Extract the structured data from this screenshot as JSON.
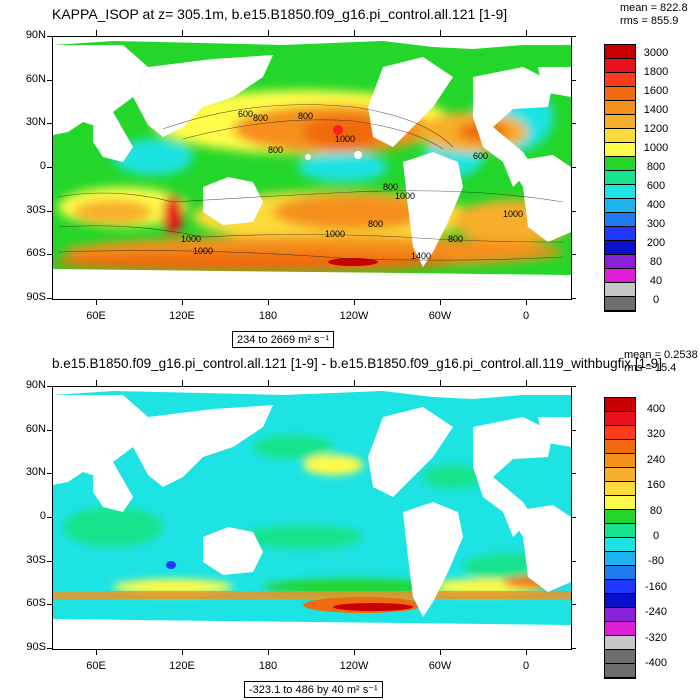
{
  "panel1": {
    "title": "KAPPA_ISOP at z= 305.1m, b.e15.B1850.f09_g16.pi_control.all.121 [1-9]",
    "mean": "mean = 822.8",
    "rms": "rms = 855.9",
    "range_label": "234 to 2669 m² s⁻¹",
    "colorbar_labels": [
      "3000",
      "1800",
      "1600",
      "1400",
      "1200",
      "1000",
      "800",
      "600",
      "400",
      "300",
      "200",
      "80",
      "40",
      "0"
    ],
    "contour_labels": [
      "600",
      "800",
      "1000",
      "800",
      "800",
      "600",
      "800",
      "1000",
      "1000",
      "800",
      "1000",
      "800",
      "1000",
      "1000",
      "1400"
    ],
    "colors": [
      "#c80000",
      "#e8101a",
      "#ff3b1e",
      "#f06a10",
      "#f5901c",
      "#f7ae2a",
      "#fbdb3a",
      "#fffb4a",
      "#24d62a",
      "#17e38c",
      "#1ee3e3",
      "#1fb4f0",
      "#1e7bf0",
      "#2038ff",
      "#0b10ca",
      "#8a20d8",
      "#e020d8",
      "#c8c8c8",
      "#6e6e6e"
    ]
  },
  "panel2": {
    "title": "b.e15.B1850.f09_g16.pi_control.all.121 [1-9] - b.e15.B1850.f09_g16.pi_control.all.119_withbugfix [1-9]",
    "mean": "mean = 0.2538",
    "rms": "rms = 15.4",
    "range_label": "-323.1 to 486 by 40 m² s⁻¹",
    "colorbar_labels": [
      "400",
      "320",
      "240",
      "160",
      "80",
      "0",
      "-80",
      "-160",
      "-240",
      "-320",
      "-400"
    ],
    "colors": [
      "#c80000",
      "#e8101a",
      "#ff3b1e",
      "#f06a10",
      "#f5901c",
      "#f7ae2a",
      "#fbdb3a",
      "#fffb4a",
      "#24d62a",
      "#17e38c",
      "#1ee3e3",
      "#1fb4f0",
      "#1e7bf0",
      "#2038ff",
      "#0b10ca",
      "#8a20d8",
      "#e020d8",
      "#c8c8c8",
      "#6e6e6e",
      "#6e6e6e"
    ]
  },
  "axes": {
    "lat_labels": [
      "90N",
      "60N",
      "30N",
      "0",
      "30S",
      "60S",
      "90S"
    ],
    "lon_labels": [
      "60E",
      "120E",
      "180",
      "120W",
      "60W",
      "0"
    ]
  }
}
